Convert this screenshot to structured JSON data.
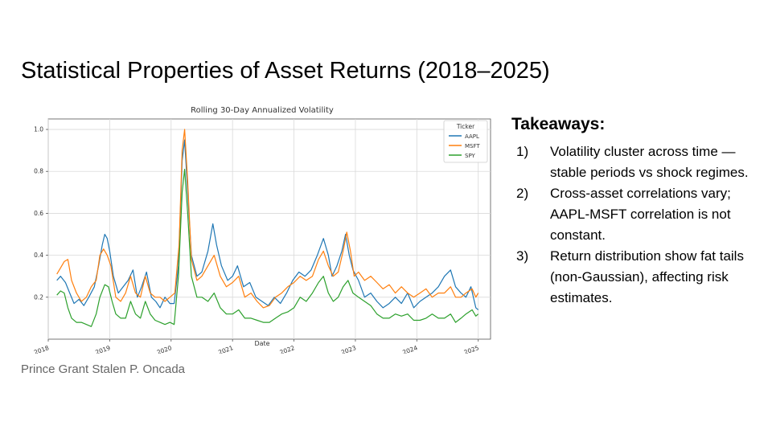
{
  "slide": {
    "title": "Statistical Properties of Asset Returns (2018–2025)",
    "author": "Prince Grant Stalen P. Oncada"
  },
  "takeaways": {
    "heading": "Takeaways:",
    "items": [
      {
        "number": "1)",
        "text": "Volatility cluster across time — stable periods vs shock regimes."
      },
      {
        "number": "2)",
        "text": "Cross-asset correlations vary; AAPL-MSFT correlation is not constant."
      },
      {
        "number": "3)",
        "text": "Return distribution show fat tails (non-Gaussian), affecting risk estimates."
      }
    ]
  },
  "chart_data": {
    "type": "line",
    "title": "Rolling 30-Day Annualized Volatility",
    "xlabel": "Date",
    "ylabel": "",
    "xlim": [
      2018.0,
      2025.2
    ],
    "ylim": [
      0.0,
      1.05
    ],
    "grid": true,
    "legend_title": "Ticker",
    "legend_position": "top-right",
    "x_ticks": [
      2018,
      2019,
      2020,
      2021,
      2022,
      2023,
      2024,
      2025
    ],
    "x_tick_labels": [
      "2018",
      "2019",
      "2020",
      "2021",
      "2022",
      "2023",
      "2024",
      "2025"
    ],
    "y_ticks": [
      0.2,
      0.4,
      0.6,
      0.8,
      1.0
    ],
    "y_tick_labels": [
      "0.2",
      "0.4",
      "0.6",
      "0.8",
      "1.0"
    ],
    "series": [
      {
        "name": "AAPL",
        "color": "#1f77b4",
        "points": [
          [
            2018.14,
            0.28
          ],
          [
            2018.2,
            0.3
          ],
          [
            2018.28,
            0.27
          ],
          [
            2018.35,
            0.22
          ],
          [
            2018.42,
            0.17
          ],
          [
            2018.5,
            0.19
          ],
          [
            2018.58,
            0.16
          ],
          [
            2018.66,
            0.2
          ],
          [
            2018.75,
            0.25
          ],
          [
            2018.82,
            0.35
          ],
          [
            2018.88,
            0.45
          ],
          [
            2018.92,
            0.5
          ],
          [
            2018.96,
            0.48
          ],
          [
            2019.0,
            0.42
          ],
          [
            2019.06,
            0.3
          ],
          [
            2019.14,
            0.22
          ],
          [
            2019.22,
            0.25
          ],
          [
            2019.3,
            0.28
          ],
          [
            2019.38,
            0.33
          ],
          [
            2019.45,
            0.2
          ],
          [
            2019.52,
            0.25
          ],
          [
            2019.6,
            0.32
          ],
          [
            2019.68,
            0.2
          ],
          [
            2019.75,
            0.18
          ],
          [
            2019.82,
            0.15
          ],
          [
            2019.9,
            0.2
          ],
          [
            2019.98,
            0.17
          ],
          [
            2020.05,
            0.17
          ],
          [
            2020.12,
            0.35
          ],
          [
            2020.18,
            0.85
          ],
          [
            2020.22,
            0.95
          ],
          [
            2020.27,
            0.7
          ],
          [
            2020.33,
            0.4
          ],
          [
            2020.42,
            0.3
          ],
          [
            2020.5,
            0.32
          ],
          [
            2020.6,
            0.42
          ],
          [
            2020.68,
            0.55
          ],
          [
            2020.74,
            0.45
          ],
          [
            2020.82,
            0.35
          ],
          [
            2020.92,
            0.28
          ],
          [
            2021.0,
            0.3
          ],
          [
            2021.08,
            0.35
          ],
          [
            2021.18,
            0.25
          ],
          [
            2021.28,
            0.27
          ],
          [
            2021.38,
            0.2
          ],
          [
            2021.48,
            0.18
          ],
          [
            2021.58,
            0.16
          ],
          [
            2021.68,
            0.2
          ],
          [
            2021.78,
            0.17
          ],
          [
            2021.88,
            0.22
          ],
          [
            2021.98,
            0.28
          ],
          [
            2022.08,
            0.32
          ],
          [
            2022.18,
            0.3
          ],
          [
            2022.28,
            0.33
          ],
          [
            2022.38,
            0.4
          ],
          [
            2022.48,
            0.48
          ],
          [
            2022.56,
            0.4
          ],
          [
            2022.62,
            0.3
          ],
          [
            2022.7,
            0.35
          ],
          [
            2022.78,
            0.42
          ],
          [
            2022.84,
            0.5
          ],
          [
            2022.9,
            0.4
          ],
          [
            2022.96,
            0.33
          ],
          [
            2023.05,
            0.28
          ],
          [
            2023.15,
            0.2
          ],
          [
            2023.25,
            0.22
          ],
          [
            2023.35,
            0.18
          ],
          [
            2023.45,
            0.15
          ],
          [
            2023.55,
            0.17
          ],
          [
            2023.65,
            0.2
          ],
          [
            2023.75,
            0.17
          ],
          [
            2023.85,
            0.22
          ],
          [
            2023.95,
            0.15
          ],
          [
            2024.05,
            0.18
          ],
          [
            2024.15,
            0.2
          ],
          [
            2024.25,
            0.22
          ],
          [
            2024.35,
            0.25
          ],
          [
            2024.45,
            0.3
          ],
          [
            2024.55,
            0.33
          ],
          [
            2024.63,
            0.25
          ],
          [
            2024.72,
            0.22
          ],
          [
            2024.8,
            0.2
          ],
          [
            2024.88,
            0.25
          ],
          [
            2024.96,
            0.15
          ],
          [
            2025.0,
            0.14
          ]
        ]
      },
      {
        "name": "MSFT",
        "color": "#ff7f0e",
        "points": [
          [
            2018.14,
            0.31
          ],
          [
            2018.2,
            0.34
          ],
          [
            2018.26,
            0.37
          ],
          [
            2018.32,
            0.38
          ],
          [
            2018.38,
            0.28
          ],
          [
            2018.46,
            0.22
          ],
          [
            2018.54,
            0.18
          ],
          [
            2018.62,
            0.2
          ],
          [
            2018.7,
            0.25
          ],
          [
            2018.78,
            0.28
          ],
          [
            2018.84,
            0.4
          ],
          [
            2018.9,
            0.43
          ],
          [
            2018.96,
            0.4
          ],
          [
            2019.02,
            0.35
          ],
          [
            2019.1,
            0.2
          ],
          [
            2019.18,
            0.18
          ],
          [
            2019.26,
            0.22
          ],
          [
            2019.34,
            0.3
          ],
          [
            2019.42,
            0.22
          ],
          [
            2019.5,
            0.2
          ],
          [
            2019.58,
            0.3
          ],
          [
            2019.66,
            0.22
          ],
          [
            2019.74,
            0.2
          ],
          [
            2019.82,
            0.2
          ],
          [
            2019.9,
            0.18
          ],
          [
            2019.98,
            0.2
          ],
          [
            2020.06,
            0.22
          ],
          [
            2020.13,
            0.45
          ],
          [
            2020.18,
            0.9
          ],
          [
            2020.22,
            1.0
          ],
          [
            2020.27,
            0.75
          ],
          [
            2020.33,
            0.38
          ],
          [
            2020.42,
            0.28
          ],
          [
            2020.5,
            0.3
          ],
          [
            2020.6,
            0.35
          ],
          [
            2020.7,
            0.4
          ],
          [
            2020.8,
            0.3
          ],
          [
            2020.9,
            0.25
          ],
          [
            2021.0,
            0.27
          ],
          [
            2021.1,
            0.3
          ],
          [
            2021.2,
            0.2
          ],
          [
            2021.3,
            0.22
          ],
          [
            2021.4,
            0.18
          ],
          [
            2021.5,
            0.15
          ],
          [
            2021.6,
            0.16
          ],
          [
            2021.7,
            0.2
          ],
          [
            2021.8,
            0.22
          ],
          [
            2021.9,
            0.25
          ],
          [
            2022.0,
            0.27
          ],
          [
            2022.1,
            0.3
          ],
          [
            2022.2,
            0.28
          ],
          [
            2022.3,
            0.3
          ],
          [
            2022.4,
            0.38
          ],
          [
            2022.48,
            0.42
          ],
          [
            2022.56,
            0.35
          ],
          [
            2022.64,
            0.3
          ],
          [
            2022.72,
            0.32
          ],
          [
            2022.8,
            0.42
          ],
          [
            2022.86,
            0.51
          ],
          [
            2022.92,
            0.42
          ],
          [
            2022.98,
            0.3
          ],
          [
            2023.05,
            0.32
          ],
          [
            2023.15,
            0.28
          ],
          [
            2023.25,
            0.3
          ],
          [
            2023.35,
            0.27
          ],
          [
            2023.45,
            0.24
          ],
          [
            2023.55,
            0.26
          ],
          [
            2023.65,
            0.22
          ],
          [
            2023.75,
            0.25
          ],
          [
            2023.85,
            0.22
          ],
          [
            2023.95,
            0.2
          ],
          [
            2024.05,
            0.22
          ],
          [
            2024.15,
            0.24
          ],
          [
            2024.25,
            0.2
          ],
          [
            2024.35,
            0.22
          ],
          [
            2024.45,
            0.22
          ],
          [
            2024.55,
            0.25
          ],
          [
            2024.63,
            0.2
          ],
          [
            2024.72,
            0.2
          ],
          [
            2024.8,
            0.22
          ],
          [
            2024.9,
            0.24
          ],
          [
            2024.96,
            0.2
          ],
          [
            2025.0,
            0.22
          ]
        ]
      },
      {
        "name": "SPY",
        "color": "#2ca02c",
        "points": [
          [
            2018.14,
            0.21
          ],
          [
            2018.2,
            0.23
          ],
          [
            2018.26,
            0.22
          ],
          [
            2018.32,
            0.15
          ],
          [
            2018.38,
            0.1
          ],
          [
            2018.46,
            0.08
          ],
          [
            2018.54,
            0.08
          ],
          [
            2018.62,
            0.07
          ],
          [
            2018.7,
            0.06
          ],
          [
            2018.78,
            0.12
          ],
          [
            2018.84,
            0.2
          ],
          [
            2018.92,
            0.26
          ],
          [
            2018.98,
            0.25
          ],
          [
            2019.04,
            0.18
          ],
          [
            2019.1,
            0.12
          ],
          [
            2019.18,
            0.1
          ],
          [
            2019.26,
            0.1
          ],
          [
            2019.34,
            0.18
          ],
          [
            2019.42,
            0.12
          ],
          [
            2019.5,
            0.1
          ],
          [
            2019.58,
            0.18
          ],
          [
            2019.66,
            0.12
          ],
          [
            2019.74,
            0.09
          ],
          [
            2019.82,
            0.08
          ],
          [
            2019.9,
            0.07
          ],
          [
            2019.98,
            0.08
          ],
          [
            2020.05,
            0.07
          ],
          [
            2020.12,
            0.3
          ],
          [
            2020.18,
            0.7
          ],
          [
            2020.22,
            0.81
          ],
          [
            2020.27,
            0.6
          ],
          [
            2020.33,
            0.3
          ],
          [
            2020.42,
            0.2
          ],
          [
            2020.5,
            0.2
          ],
          [
            2020.6,
            0.18
          ],
          [
            2020.7,
            0.22
          ],
          [
            2020.8,
            0.15
          ],
          [
            2020.9,
            0.12
          ],
          [
            2021.0,
            0.12
          ],
          [
            2021.1,
            0.14
          ],
          [
            2021.2,
            0.1
          ],
          [
            2021.3,
            0.1
          ],
          [
            2021.4,
            0.09
          ],
          [
            2021.5,
            0.08
          ],
          [
            2021.6,
            0.08
          ],
          [
            2021.7,
            0.1
          ],
          [
            2021.8,
            0.12
          ],
          [
            2021.9,
            0.13
          ],
          [
            2022.0,
            0.15
          ],
          [
            2022.1,
            0.2
          ],
          [
            2022.2,
            0.18
          ],
          [
            2022.3,
            0.22
          ],
          [
            2022.4,
            0.27
          ],
          [
            2022.48,
            0.3
          ],
          [
            2022.56,
            0.22
          ],
          [
            2022.64,
            0.18
          ],
          [
            2022.72,
            0.2
          ],
          [
            2022.8,
            0.25
          ],
          [
            2022.88,
            0.28
          ],
          [
            2022.96,
            0.22
          ],
          [
            2023.05,
            0.2
          ],
          [
            2023.15,
            0.18
          ],
          [
            2023.25,
            0.16
          ],
          [
            2023.35,
            0.12
          ],
          [
            2023.45,
            0.1
          ],
          [
            2023.55,
            0.1
          ],
          [
            2023.65,
            0.12
          ],
          [
            2023.75,
            0.11
          ],
          [
            2023.85,
            0.12
          ],
          [
            2023.95,
            0.09
          ],
          [
            2024.05,
            0.09
          ],
          [
            2024.15,
            0.1
          ],
          [
            2024.25,
            0.12
          ],
          [
            2024.35,
            0.1
          ],
          [
            2024.45,
            0.1
          ],
          [
            2024.55,
            0.12
          ],
          [
            2024.63,
            0.08
          ],
          [
            2024.72,
            0.1
          ],
          [
            2024.8,
            0.12
          ],
          [
            2024.9,
            0.14
          ],
          [
            2024.96,
            0.11
          ],
          [
            2025.0,
            0.12
          ]
        ]
      }
    ]
  }
}
